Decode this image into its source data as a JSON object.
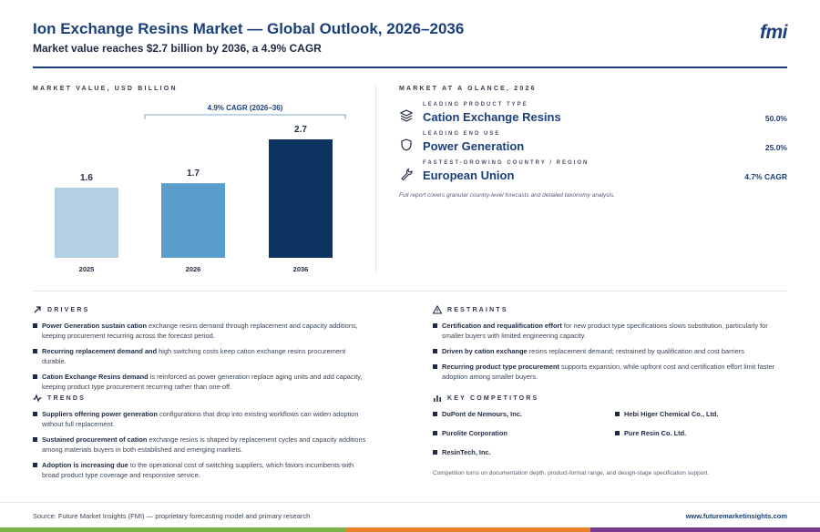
{
  "header": {
    "title": "Ion Exchange Resins Market — Global Outlook, 2026–2036",
    "subtitle": "Market value reaches $2.7 billion by 2036, a 4.9% CAGR",
    "logo": "fmi"
  },
  "chart_section_label": "MARKET VALUE, USD BILLION",
  "chart_data": {
    "type": "bar",
    "categories": [
      "2025",
      "2026",
      "2036"
    ],
    "values": [
      1.6,
      1.7,
      2.7
    ],
    "value_labels": [
      "1.6",
      "1.7",
      "2.7"
    ],
    "colors": [
      "#b3cfe2",
      "#5a9fcb",
      "#0d3461"
    ],
    "ylim": [
      0,
      2.7
    ],
    "annotation": "4.9% CAGR (2026–36)",
    "grid": false,
    "legend": "none"
  },
  "glance": {
    "label": "MARKET AT A GLANCE, 2026",
    "rows": [
      {
        "label": "LEADING PRODUCT TYPE",
        "value": "Cation Exchange Resins",
        "share": "50.0%",
        "icon": "layers-icon"
      },
      {
        "label": "LEADING END USE",
        "value": "Power Generation",
        "share": "25.0%",
        "icon": "shield-icon"
      },
      {
        "label": "FASTEST-GROWING COUNTRY / REGION",
        "value": "European Union",
        "share": "4.7% CAGR",
        "icon": "wrench-icon"
      }
    ],
    "footnote": "Full report covers granular country-level forecasts and detailed taxonomy analysis."
  },
  "drivers": {
    "label": "DRIVERS",
    "items": [
      {
        "bold": "Power Generation sustain cation",
        "text": " exchange resins demand through replacement and capacity additions, keeping procurement recurring across the forecast period."
      },
      {
        "bold": "Recurring replacement demand and",
        "text": " high switching costs keep cation exchange resins procurement durable."
      },
      {
        "bold": "Cation Exchange Resins demand",
        "text": " is reinforced as power generation replace aging units and add capacity, keeping product type procurement recurring rather than one-off."
      }
    ]
  },
  "trends": {
    "label": "TRENDS",
    "items": [
      {
        "bold": "Suppliers offering power generation",
        "text": " configurations that drop into existing workflows can widen adoption without full replacement."
      },
      {
        "bold": "Sustained procurement of cation",
        "text": " exchange resins is shaped by replacement cycles and capacity additions among materials buyers in both established and emerging markets."
      },
      {
        "bold": "Adoption is increasing due",
        "text": " to the operational cost of switching suppliers, which favors incumbents with broad product type coverage and responsive service."
      }
    ]
  },
  "restraints": {
    "label": "RESTRAINTS",
    "items": [
      {
        "bold": "Certification and requalification effort",
        "text": " for new product type specifications slows substitution, particularly for smaller buyers with limited engineering capacity."
      },
      {
        "bold": "Driven by cation exchange",
        "text": " resins replacement demand; restrained by qualification and cost barriers"
      },
      {
        "bold": "Recurring product type procurement",
        "text": " supports expansion, while upfront cost and certification effort limit faster adoption among smaller buyers."
      }
    ]
  },
  "competitors": {
    "label": "KEY COMPETITORS",
    "items": [
      "DuPont de Nemours, Inc.",
      "Hebi Higer Chemical Co., Ltd.",
      "Purolite Corporation",
      "Pure Resin Co. Ltd.",
      "ResinTech, Inc."
    ],
    "note": "Competition turns on documentation depth, product-format range, and design-stage specification support."
  },
  "footer": {
    "source": "Source: Future Market Insights (FMI) — proprietary forecasting model and primary research",
    "url": "www.futuremarketinsights.com"
  },
  "colors": {
    "brand": "#1a3f7a",
    "strip_green": "#7ab648",
    "strip_orange": "#e8822a",
    "strip_purple": "#7a3a8c"
  }
}
